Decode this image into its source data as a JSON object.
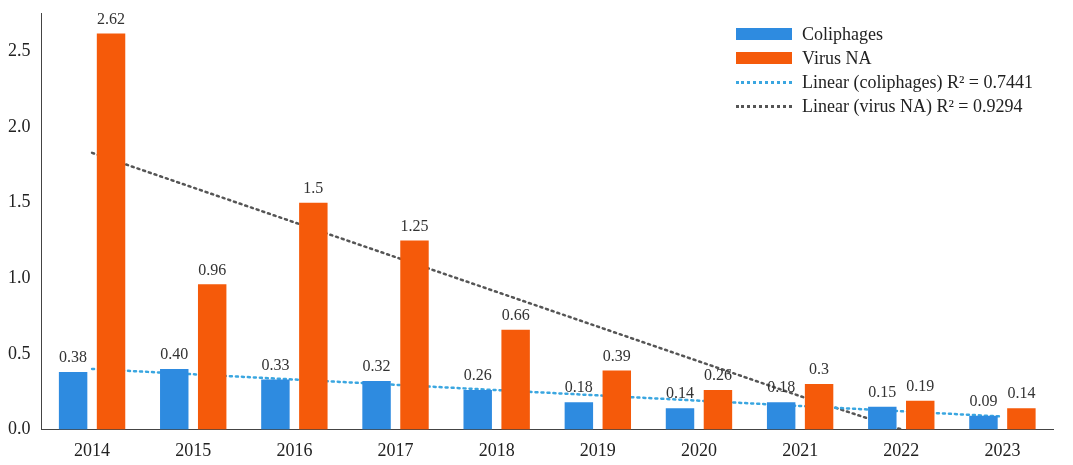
{
  "chart_data": {
    "type": "bar",
    "categories": [
      "2014",
      "2015",
      "2016",
      "2017",
      "2018",
      "2019",
      "2020",
      "2021",
      "2022",
      "2023"
    ],
    "series": [
      {
        "name": "Coliphages",
        "color": "#2e8be0",
        "values": [
          0.38,
          0.4,
          0.33,
          0.32,
          0.26,
          0.18,
          0.14,
          0.18,
          0.15,
          0.09
        ],
        "value_labels": [
          "0.38",
          "0.40",
          "0.33",
          "0.32",
          "0.26",
          "0.18",
          "0.14",
          "0.18",
          "0.15",
          "0.09"
        ]
      },
      {
        "name": "Virus NA",
        "color": "#f55a0a",
        "values": [
          2.62,
          0.96,
          1.5,
          1.25,
          0.66,
          0.39,
          0.26,
          0.3,
          0.19,
          0.14
        ],
        "value_labels": [
          "2.62",
          "0.96",
          "1.5",
          "1.25",
          "0.66",
          "0.39",
          "0.26",
          "0.3",
          "0.19",
          "0.14"
        ]
      },
      {
        "name": "Linear (coliphages) R² = 0.7441",
        "type": "line",
        "color": "#3aa6e0",
        "line_style": "dotted",
        "values": [
          0.4,
          0.365,
          0.33,
          0.295,
          0.26,
          0.225,
          0.19,
          0.155,
          0.12,
          0.085
        ]
      },
      {
        "name": "Linear (virus NA) R² = 0.9294",
        "type": "line",
        "color": "#555555",
        "line_style": "dotted",
        "values": [
          1.83,
          1.6,
          1.37,
          1.14,
          0.91,
          0.68,
          0.45,
          0.22,
          0.0,
          null
        ]
      }
    ],
    "ylim": [
      0,
      2.75
    ],
    "yticks": [
      {
        "value": 0,
        "label": "0.0"
      },
      0.5,
      {
        "value": 1,
        "label": "1.0"
      },
      1.5,
      {
        "value": 2,
        "label": "2.0"
      },
      2.5
    ],
    "grid": false,
    "legend": "top right",
    "marker": "none"
  }
}
